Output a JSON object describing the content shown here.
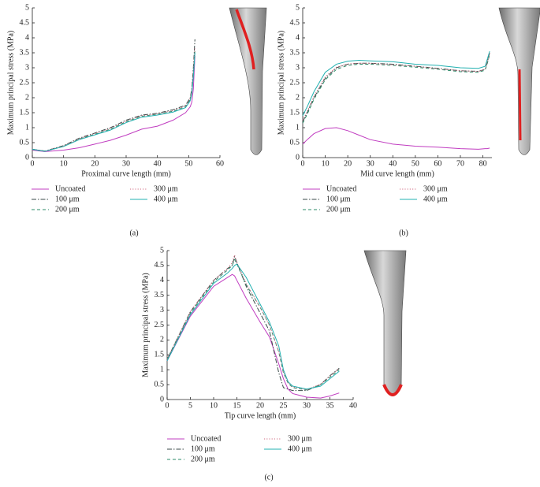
{
  "chart_data": [
    {
      "type": "line",
      "caption": "(a)",
      "x_label": "Proximal curve length (mm)",
      "y_label": "Maximum principal stress (MPa)",
      "x": [
        0,
        4,
        10,
        15,
        20,
        25,
        30,
        35,
        40,
        45,
        49,
        50.5,
        51,
        51.5,
        52
      ],
      "xlim": [
        0,
        60
      ],
      "xticks": [
        0,
        10,
        20,
        30,
        40,
        50,
        60
      ],
      "ylim": [
        0,
        5
      ],
      "yticks": [
        0,
        0.5,
        1,
        1.5,
        2,
        2.5,
        3,
        3.5,
        4,
        4.5,
        5
      ],
      "series": [
        {
          "name": "Uncoated",
          "color": "#c03cc0",
          "linestyle": "solid",
          "values": [
            0.25,
            0.2,
            0.25,
            0.33,
            0.45,
            0.58,
            0.75,
            0.95,
            1.05,
            1.25,
            1.5,
            1.7,
            1.85,
            2.3,
            3.4
          ]
        },
        {
          "name": "100 μm",
          "color": "#3a4a48",
          "linestyle": "dashdot",
          "values": [
            0.28,
            0.22,
            0.4,
            0.65,
            0.82,
            1.0,
            1.25,
            1.42,
            1.48,
            1.6,
            1.75,
            2.0,
            2.3,
            3.0,
            3.95
          ]
        },
        {
          "name": "200 μm",
          "color": "#2e8b6a",
          "linestyle": "dashed",
          "values": [
            0.27,
            0.21,
            0.38,
            0.62,
            0.78,
            0.95,
            1.2,
            1.38,
            1.45,
            1.55,
            1.7,
            1.95,
            2.2,
            2.8,
            3.6
          ]
        },
        {
          "name": "300 μm",
          "color": "#d06a80",
          "linestyle": "dotted",
          "values": [
            0.28,
            0.22,
            0.39,
            0.63,
            0.8,
            0.97,
            1.22,
            1.4,
            1.46,
            1.57,
            1.72,
            1.97,
            2.25,
            2.9,
            3.7
          ]
        },
        {
          "name": "400 μm",
          "color": "#22b0b0",
          "linestyle": "solid",
          "values": [
            0.28,
            0.21,
            0.37,
            0.6,
            0.76,
            0.92,
            1.17,
            1.35,
            1.42,
            1.52,
            1.67,
            1.9,
            2.15,
            2.7,
            3.5
          ]
        }
      ]
    },
    {
      "type": "line",
      "caption": "(b)",
      "x_label": "Mid curve length (mm)",
      "y_label": "Maximum principal stress (MPa)",
      "x": [
        0,
        2,
        5,
        10,
        15,
        20,
        25,
        30,
        40,
        50,
        60,
        70,
        78,
        81,
        82,
        83
      ],
      "xlim": [
        0,
        84
      ],
      "xticks": [
        0,
        10,
        20,
        30,
        40,
        50,
        60,
        70,
        80
      ],
      "ylim": [
        0,
        5
      ],
      "yticks": [
        0,
        0.5,
        1,
        1.5,
        2,
        2.5,
        3,
        3.5,
        4,
        4.5,
        5
      ],
      "series": [
        {
          "name": "Uncoated",
          "color": "#c03cc0",
          "linestyle": "solid",
          "values": [
            0.45,
            0.6,
            0.8,
            0.97,
            1.0,
            0.9,
            0.75,
            0.6,
            0.45,
            0.38,
            0.35,
            0.3,
            0.28,
            0.3,
            0.3,
            0.32
          ]
        },
        {
          "name": "100 μm",
          "color": "#3a4a48",
          "linestyle": "dashdot",
          "values": [
            1.2,
            1.5,
            2.0,
            2.65,
            3.0,
            3.12,
            3.15,
            3.15,
            3.12,
            3.05,
            2.98,
            2.9,
            2.88,
            2.95,
            3.2,
            3.5
          ]
        },
        {
          "name": "200 μm",
          "color": "#2e8b6a",
          "linestyle": "dashed",
          "values": [
            1.15,
            1.45,
            1.95,
            2.6,
            2.95,
            3.08,
            3.12,
            3.12,
            3.08,
            3.02,
            2.95,
            2.87,
            2.85,
            2.92,
            3.15,
            3.45
          ]
        },
        {
          "name": "300 μm",
          "color": "#d06a80",
          "linestyle": "dotted",
          "values": [
            1.25,
            1.55,
            2.05,
            2.7,
            3.02,
            3.13,
            3.15,
            3.15,
            3.1,
            3.05,
            2.97,
            2.9,
            2.88,
            2.95,
            3.2,
            3.5
          ]
        },
        {
          "name": "400 μm",
          "color": "#22b0b0",
          "linestyle": "solid",
          "values": [
            1.4,
            1.7,
            2.2,
            2.85,
            3.12,
            3.22,
            3.25,
            3.23,
            3.2,
            3.12,
            3.08,
            3.0,
            2.98,
            3.05,
            3.3,
            3.55
          ]
        }
      ]
    },
    {
      "type": "line",
      "caption": "(c)",
      "x_label": "Tip curve length (mm)",
      "y_label": "Maximum principal stress (MPa)",
      "x": [
        0,
        5,
        10,
        13,
        14,
        14.5,
        15,
        17,
        20,
        22,
        24,
        25,
        26,
        27,
        30,
        33,
        35,
        37
      ],
      "xlim": [
        0,
        40
      ],
      "xticks": [
        0,
        5,
        10,
        15,
        20,
        25,
        30,
        35,
        40
      ],
      "ylim": [
        0,
        5
      ],
      "yticks": [
        0,
        0.5,
        1,
        1.5,
        2,
        2.5,
        3,
        3.5,
        4,
        4.5,
        5
      ],
      "series": [
        {
          "name": "Uncoated",
          "color": "#c03cc0",
          "linestyle": "solid",
          "values": [
            1.3,
            2.8,
            3.8,
            4.1,
            4.2,
            4.15,
            4.0,
            3.4,
            2.6,
            2.1,
            1.2,
            0.7,
            0.35,
            0.2,
            0.08,
            0.05,
            0.12,
            0.22
          ]
        },
        {
          "name": "100 μm",
          "color": "#3a4a48",
          "linestyle": "dashdot",
          "values": [
            1.35,
            2.95,
            4.0,
            4.4,
            4.5,
            4.8,
            4.6,
            3.8,
            2.9,
            2.3,
            0.9,
            0.4,
            0.35,
            0.3,
            0.3,
            0.5,
            0.8,
            1.05
          ]
        },
        {
          "name": "200 μm",
          "color": "#2e8b6a",
          "linestyle": "dashed",
          "values": [
            1.35,
            2.9,
            3.95,
            4.35,
            4.5,
            4.7,
            4.55,
            3.85,
            3.1,
            2.5,
            1.6,
            0.9,
            0.55,
            0.4,
            0.32,
            0.5,
            0.75,
            1.0
          ]
        },
        {
          "name": "300 μm",
          "color": "#d06a80",
          "linestyle": "dotted",
          "values": [
            1.35,
            2.95,
            4.0,
            4.4,
            4.6,
            4.85,
            4.6,
            3.9,
            3.1,
            2.5,
            1.62,
            0.92,
            0.56,
            0.42,
            0.33,
            0.52,
            0.78,
            1.05
          ]
        },
        {
          "name": "400 μm",
          "color": "#22b0b0",
          "linestyle": "solid",
          "values": [
            1.3,
            2.85,
            3.9,
            4.25,
            4.4,
            4.5,
            4.55,
            4.1,
            3.2,
            2.6,
            1.8,
            1.0,
            0.6,
            0.45,
            0.35,
            0.45,
            0.7,
            0.95
          ]
        }
      ]
    }
  ]
}
